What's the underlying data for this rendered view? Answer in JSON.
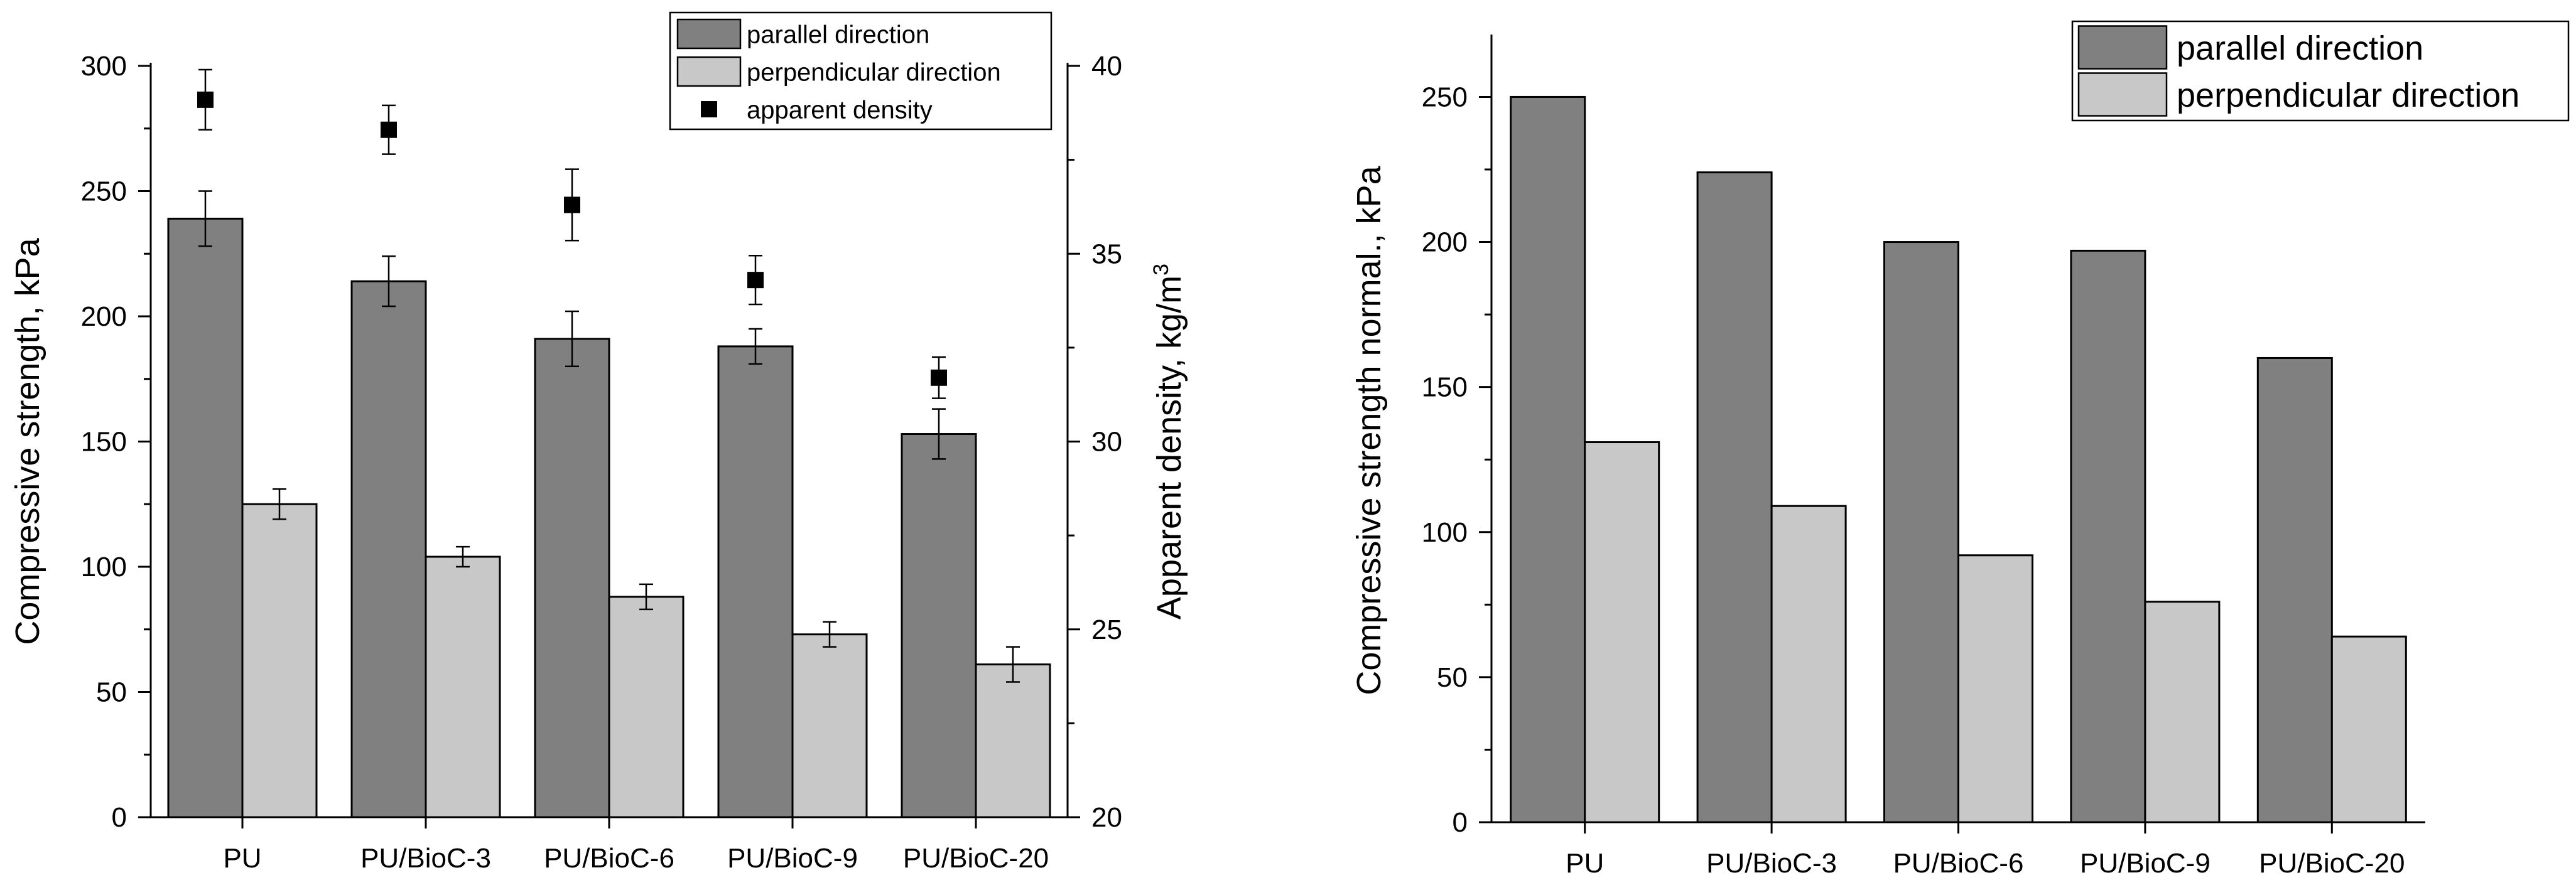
{
  "chart_data": [
    {
      "type": "bar",
      "title": "",
      "categories": [
        "PU",
        "PU/BioC-3",
        "PU/BioC-6",
        "PU/BioC-9",
        "PU/BioC-20"
      ],
      "xlabel": "",
      "ylabel": "Compressive strength, kPa",
      "y2label": "Apparent density, kg/m",
      "y2label_sup": "3",
      "ylim": [
        0,
        300
      ],
      "yticks": [
        0,
        50,
        100,
        150,
        200,
        250,
        300
      ],
      "y2lim": [
        20,
        40
      ],
      "y2ticks": [
        20,
        25,
        30,
        35,
        40
      ],
      "series": [
        {
          "name": "parallel direction",
          "color": "#808080",
          "values": [
            239,
            214,
            191,
            188,
            153
          ],
          "errors": [
            11,
            10,
            11,
            7,
            10
          ]
        },
        {
          "name": "perpendicular direction",
          "color": "#c8c8c8",
          "values": [
            125,
            104,
            88,
            73,
            61
          ],
          "errors": [
            6,
            4,
            5,
            5,
            7
          ]
        }
      ],
      "density": {
        "name": "apparent density",
        "color": "#000000",
        "values": [
          39.1,
          38.3,
          36.3,
          34.3,
          31.7
        ],
        "errors": [
          0.8,
          0.65,
          0.95,
          0.65,
          0.55
        ]
      },
      "legend": "top-right"
    },
    {
      "type": "bar",
      "title": "",
      "categories": [
        "PU",
        "PU/BioC-3",
        "PU/BioC-6",
        "PU/BioC-9",
        "PU/BioC-20"
      ],
      "xlabel": "",
      "ylabel": "Compressive strength normal., kPa",
      "ylim": [
        0,
        270
      ],
      "yticks": [
        0,
        50,
        100,
        150,
        200,
        250
      ],
      "series": [
        {
          "name": "parallel direction",
          "color": "#808080",
          "values": [
            250,
            224,
            200,
            197,
            160
          ]
        },
        {
          "name": "perpendicular direction",
          "color": "#c8c8c8",
          "values": [
            131,
            109,
            92,
            76,
            64
          ]
        }
      ],
      "legend": "top-right"
    }
  ]
}
